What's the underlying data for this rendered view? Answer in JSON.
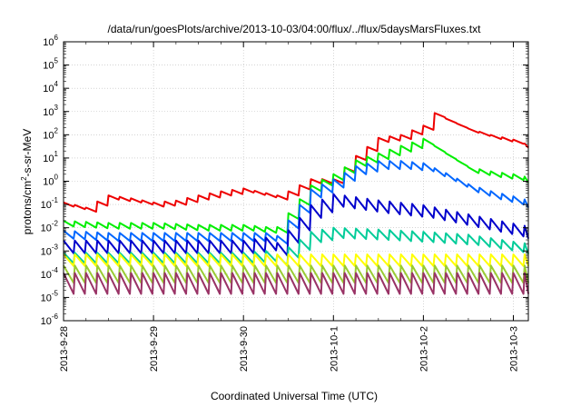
{
  "chart_data": {
    "type": "line",
    "title": "/data/run/goesPlots/archive/2013-10-03/04:00/flux/../flux/5daysMarsFluxes.txt",
    "xlabel": "Coordinated Universal Time (UTC)",
    "ylabel": {
      "main": "protons/cm",
      "sup": "2",
      "rest": "-s-sr-MeV"
    },
    "xlim": [
      "2013-09-28 00:00",
      "2013-10-03 04:00"
    ],
    "ylim": [
      1e-06,
      1000000.0
    ],
    "yscale": "log",
    "grid": true,
    "x_ticks": [
      "2013-9-28",
      "2013-9-29",
      "2013-9-30",
      "2013-10-1",
      "2013-10-2",
      "2013-10-3"
    ],
    "y_ticks": [
      {
        "base": "10",
        "exp": "-6"
      },
      {
        "base": "10",
        "exp": "-5"
      },
      {
        "base": "10",
        "exp": "-4"
      },
      {
        "base": "10",
        "exp": "-3"
      },
      {
        "base": "10",
        "exp": "-2"
      },
      {
        "base": "10",
        "exp": "-1"
      },
      {
        "base": "10",
        "exp": "0"
      },
      {
        "base": "10",
        "exp": "1"
      },
      {
        "base": "10",
        "exp": "2"
      },
      {
        "base": "10",
        "exp": "3"
      },
      {
        "base": "10",
        "exp": "4"
      },
      {
        "base": "10",
        "exp": "5"
      },
      {
        "base": "10",
        "exp": "6"
      }
    ],
    "series": [
      {
        "color": "#ee0000",
        "x": [
          "2013-09-28 00:00",
          "2013-09-28 06:00",
          "2013-09-28 12:00",
          "2013-09-28 18:00",
          "2013-09-29 00:00",
          "2013-09-29 06:00",
          "2013-09-29 12:00",
          "2013-09-29 18:00",
          "2013-09-30 00:00",
          "2013-09-30 06:00",
          "2013-09-30 09:00",
          "2013-09-30 12:00",
          "2013-09-30 18:00",
          "2013-10-01 00:00",
          "2013-10-01 06:00",
          "2013-10-01 12:00",
          "2013-10-01 18:00",
          "2013-10-02 00:00",
          "2013-10-02 03:00",
          "2013-10-02 06:00",
          "2013-10-02 12:00",
          "2013-10-02 18:00",
          "2013-10-03 00:00",
          "2013-10-03 04:00"
        ],
        "y": [
          0.1,
          0.06,
          0.2,
          0.15,
          0.1,
          0.12,
          0.2,
          0.3,
          0.4,
          0.25,
          0.2,
          0.3,
          1,
          1,
          10,
          60,
          80,
          200,
          700,
          400,
          150,
          80,
          50,
          30
        ],
        "sawtooth": 0.18
      },
      {
        "color": "#00ee00",
        "x": [
          "2013-09-28 00:00",
          "2013-09-28 12:00",
          "2013-09-29 00:00",
          "2013-09-29 12:00",
          "2013-09-30 00:00",
          "2013-09-30 06:00",
          "2013-09-30 09:00",
          "2013-09-30 18:00",
          "2013-10-01 00:00",
          "2013-10-01 06:00",
          "2013-10-01 12:00",
          "2013-10-01 18:00",
          "2013-10-02 00:00",
          "2013-10-02 06:00",
          "2013-10-02 12:00",
          "2013-10-02 18:00",
          "2013-10-03 00:00",
          "2013-10-03 04:00"
        ],
        "y": [
          0.015,
          0.012,
          0.012,
          0.01,
          0.01,
          0.008,
          0.008,
          0.5,
          1.5,
          6,
          12,
          25,
          50,
          12,
          3,
          2,
          1.5,
          1.1
        ],
        "sawtooth": 0.25
      },
      {
        "color": "#0066ff",
        "x": [
          "2013-09-28 00:00",
          "2013-09-28 12:00",
          "2013-09-29 00:00",
          "2013-09-29 12:00",
          "2013-09-30 00:00",
          "2013-09-30 06:00",
          "2013-09-30 09:00",
          "2013-09-30 18:00",
          "2013-10-01 00:00",
          "2013-10-01 06:00",
          "2013-10-01 12:00",
          "2013-10-01 18:00",
          "2013-10-02 00:00",
          "2013-10-02 06:00",
          "2013-10-02 12:00",
          "2013-10-02 18:00",
          "2013-10-03 00:00",
          "2013-10-03 04:00"
        ],
        "y": [
          0.005,
          0.004,
          0.004,
          0.004,
          0.004,
          0.004,
          0.003,
          0.3,
          0.8,
          3,
          5,
          5,
          4,
          1.5,
          0.5,
          0.25,
          0.15,
          0.1
        ],
        "sawtooth": 0.35
      },
      {
        "color": "#0000cc",
        "x": [
          "2013-09-28 00:00",
          "2013-09-29 00:00",
          "2013-09-30 00:00",
          "2013-09-30 06:00",
          "2013-09-30 09:00",
          "2013-09-30 18:00",
          "2013-10-01 00:00",
          "2013-10-01 12:00",
          "2013-10-02 00:00",
          "2013-10-02 12:00",
          "2013-10-03 00:00",
          "2013-10-03 04:00"
        ],
        "y": [
          0.0015,
          0.0015,
          0.0015,
          0.002,
          0.0012,
          0.05,
          0.15,
          0.08,
          0.05,
          0.02,
          0.008,
          0.006
        ],
        "sawtooth": 0.55
      },
      {
        "color": "#00cc99",
        "x": [
          "2013-09-28 00:00",
          "2013-09-29 00:00",
          "2013-09-30 00:00",
          "2013-09-30 06:00",
          "2013-09-30 09:00",
          "2013-09-30 18:00",
          "2013-10-01 00:00",
          "2013-10-01 12:00",
          "2013-10-02 00:00",
          "2013-10-02 12:00",
          "2013-10-03 00:00",
          "2013-10-03 04:00"
        ],
        "y": [
          0.0005,
          0.0005,
          0.0005,
          0.0006,
          0.0004,
          0.004,
          0.006,
          0.005,
          0.004,
          0.003,
          0.0015,
          0.0012
        ],
        "sawtooth": 0.45
      },
      {
        "color": "#ffff00",
        "x": [
          "2013-09-28 00:00",
          "2013-10-03 04:00"
        ],
        "y": [
          0.0004,
          0.0004
        ],
        "sawtooth": 0.5
      },
      {
        "color": "#99cc33",
        "x": [
          "2013-09-28 00:00",
          "2013-10-03 04:00"
        ],
        "y": [
          0.0001,
          0.0001
        ],
        "sawtooth": 0.75
      },
      {
        "color": "#993366",
        "x": [
          "2013-09-28 00:00",
          "2013-10-03 04:00"
        ],
        "y": [
          4e-05,
          4e-05
        ],
        "sawtooth": 0.9
      }
    ]
  }
}
